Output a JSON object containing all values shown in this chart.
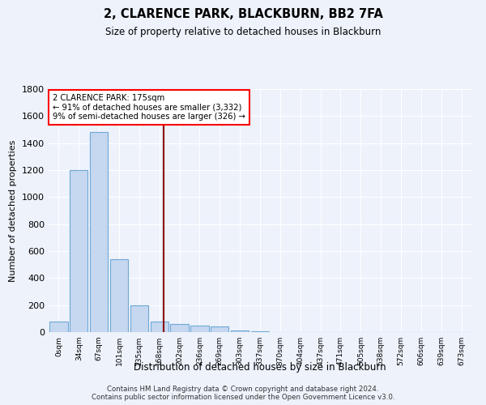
{
  "title": "2, CLARENCE PARK, BLACKBURN, BB2 7FA",
  "subtitle": "Size of property relative to detached houses in Blackburn",
  "xlabel": "Distribution of detached houses by size in Blackburn",
  "ylabel": "Number of detached properties",
  "footer_line1": "Contains HM Land Registry data © Crown copyright and database right 2024.",
  "footer_line2": "Contains public sector information licensed under the Open Government Licence v3.0.",
  "bar_values": [
    80,
    1200,
    1480,
    540,
    200,
    80,
    60,
    50,
    40,
    15,
    5,
    0,
    0,
    0,
    0,
    0,
    0,
    0,
    0,
    0,
    0
  ],
  "tick_labels": [
    "0sqm",
    "34sqm",
    "67sqm",
    "101sqm",
    "135sqm",
    "168sqm",
    "202sqm",
    "236sqm",
    "269sqm",
    "303sqm",
    "337sqm",
    "370sqm",
    "404sqm",
    "437sqm",
    "471sqm",
    "505sqm",
    "538sqm",
    "572sqm",
    "606sqm",
    "639sqm",
    "673sqm"
  ],
  "bar_color": "#c5d8f0",
  "bar_edge_color": "#6fa8d6",
  "ylim": [
    0,
    1800
  ],
  "yticks": [
    0,
    200,
    400,
    600,
    800,
    1000,
    1200,
    1400,
    1600,
    1800
  ],
  "annotation_title": "2 CLARENCE PARK: 175sqm",
  "annotation_line1": "← 91% of detached houses are smaller (3,332)",
  "annotation_line2": "9% of semi-detached houses are larger (326) →",
  "vline_bar_index": 4.7,
  "background_color": "#edf2fb",
  "grid_color": "#ffffff",
  "bar_width": 0.9
}
